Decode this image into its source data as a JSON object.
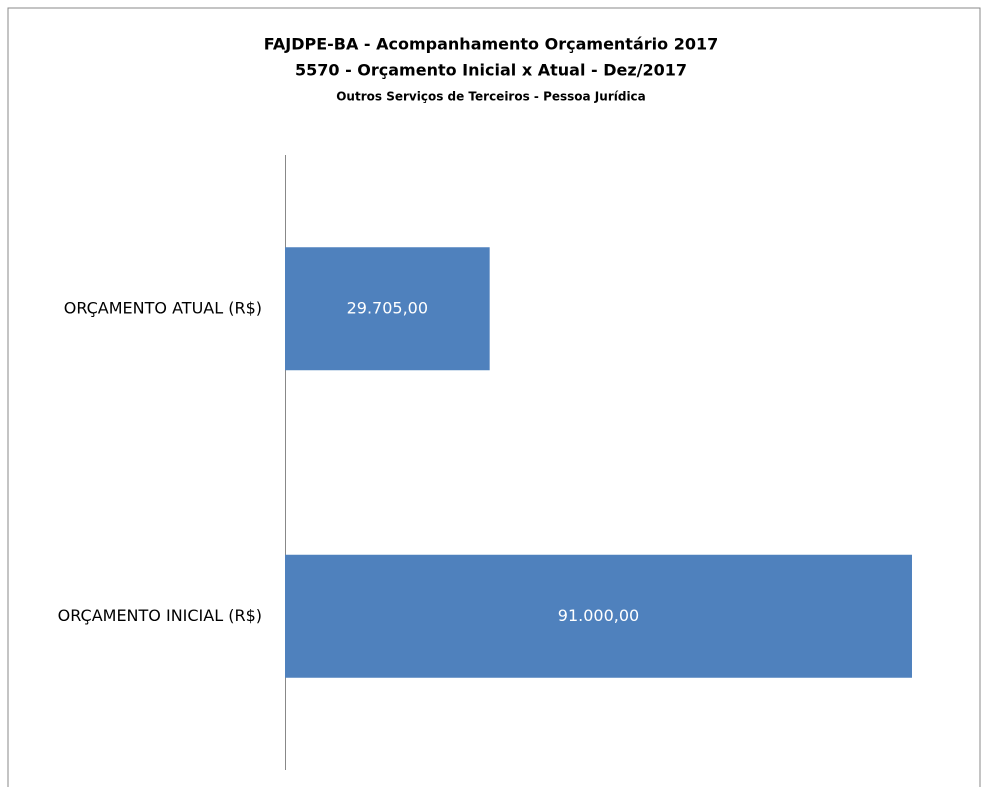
{
  "chart_data": {
    "type": "hbar",
    "title": "FAJDPE-BA - Acompanhamento Orçamentário 2017",
    "subtitle": "5570 - Orçamento Inicial x Atual - Dez/2017",
    "caption": "Outros Serviços de Terceiros - Pessoa Jurídica",
    "categories": [
      "ORÇAMENTO ATUAL (R$)",
      "ORÇAMENTO INICIAL (R$)"
    ],
    "values": [
      29705,
      91000
    ],
    "value_labels": [
      "29.705,00",
      "91.000,00"
    ],
    "color": "#4f81bd",
    "xlim": [
      0,
      100000
    ]
  }
}
